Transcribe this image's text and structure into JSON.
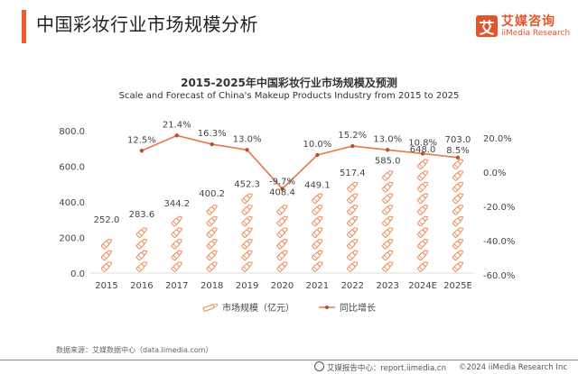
{
  "header": {
    "title": "中国彩妆行业市场规模分析",
    "accent_color": "#ec5f2d"
  },
  "logo": {
    "mark": "艾",
    "cn": "艾媒咨询",
    "en": "iiMedia Research",
    "color": "#e2552b"
  },
  "chart_data": {
    "type": "bar",
    "title": "2015-2025年中国彩妆行业市场规模及预测",
    "subtitle": "Scale and Forecast of China's Makeup Products Industry from 2015 to 2025",
    "categories": [
      "2015",
      "2016",
      "2017",
      "2018",
      "2019",
      "2020",
      "2021",
      "2022",
      "2023",
      "2024E",
      "2025E"
    ],
    "series": [
      {
        "name": "市场规模（亿元）",
        "type": "pictorial-bar",
        "axis": "left",
        "values": [
          252.0,
          283.6,
          344.2,
          400.2,
          452.3,
          408.4,
          449.1,
          517.4,
          585.0,
          648.0,
          703.0
        ],
        "labels": [
          "252.0",
          "283.6",
          "344.2",
          "400.2",
          "452.3",
          "408.4",
          "449.1",
          "517.4",
          "585.0",
          "648.0",
          "703.0"
        ],
        "color": "#f0a070"
      },
      {
        "name": "同比增长",
        "type": "line",
        "axis": "right",
        "values": [
          null,
          12.5,
          21.4,
          16.3,
          13.0,
          -9.7,
          10.0,
          15.2,
          13.0,
          10.8,
          8.5
        ],
        "labels": [
          "",
          "12.5%",
          "21.4%",
          "16.3%",
          "13.0%",
          "-9.7%",
          "10.0%",
          "15.2%",
          "13.0%",
          "10.8%",
          "8.5%"
        ],
        "color": "#e8774a"
      }
    ],
    "y_left": {
      "ylim": [
        0,
        800
      ],
      "ticks": [
        "0.0",
        "200.0",
        "400.0",
        "600.0",
        "800.0"
      ],
      "tick_values": [
        0,
        200,
        400,
        600,
        800
      ]
    },
    "y_right": {
      "ylim": [
        -60,
        20
      ],
      "ticks": [
        "-60.0%",
        "-40.0%",
        "-20.0%",
        "0.0%",
        "20.0%"
      ],
      "tick_values": [
        -60,
        -40,
        -20,
        0,
        20
      ]
    },
    "xlabel": "",
    "ylabel": "",
    "grid": false,
    "legend_position": "bottom"
  },
  "source": "数据来源：艾媒数据中心（data.iimedia.com）",
  "footer": {
    "report_center": "艾媒报告中心：report.iimedia.cn",
    "copyright": "©2024  iiMedia Research  Inc"
  }
}
